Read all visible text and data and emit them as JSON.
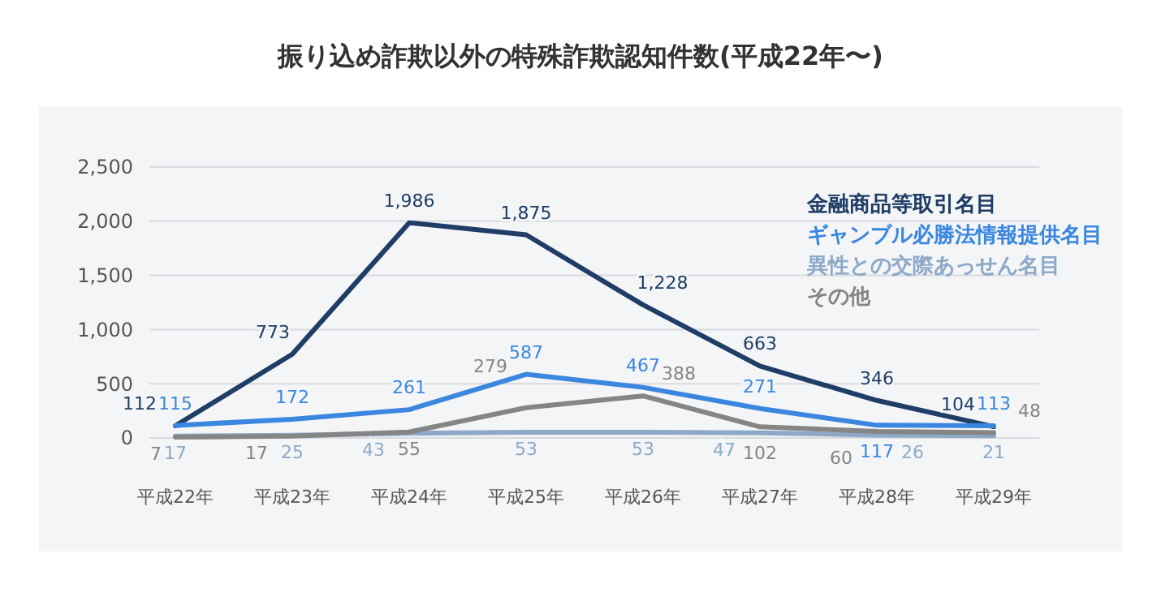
{
  "chart_data": {
    "type": "line",
    "title": "振り込め詐欺以外の特殊詐欺認知件数(平成22年〜)",
    "categories": [
      "平成22年",
      "平成23年",
      "平成24年",
      "平成25年",
      "平成26年",
      "平成27年",
      "平成28年",
      "平成29年"
    ],
    "series": [
      {
        "name": "金融商品等取引名目",
        "color": "#1f3d66",
        "values": [
          112,
          773,
          1986,
          1875,
          1228,
          663,
          346,
          104
        ],
        "value_labels": [
          "112",
          "773",
          "1,986",
          "1,875",
          "1,228",
          "663",
          "346",
          "104"
        ]
      },
      {
        "name": "ギャンブル必勝法情報提供名目",
        "color": "#3b87e0",
        "values": [
          115,
          172,
          261,
          587,
          467,
          271,
          117,
          113
        ],
        "value_labels": [
          "115",
          "172",
          "261",
          "587",
          "467",
          "271",
          "117",
          "113"
        ]
      },
      {
        "name": "異性との交際あっせん名目",
        "color": "#8ea9c8",
        "values": [
          17,
          25,
          43,
          53,
          53,
          47,
          26,
          21
        ],
        "value_labels": [
          "17",
          "25",
          "43",
          "53",
          "53",
          "47",
          "26",
          "21"
        ]
      },
      {
        "name": "その他",
        "color": "#858585",
        "values": [
          7,
          17,
          55,
          279,
          388,
          102,
          60,
          48
        ],
        "value_labels": [
          "7",
          "17",
          "55",
          "279",
          "388",
          "102",
          "60",
          "48"
        ]
      }
    ],
    "ylim": [
      0,
      2500
    ],
    "yticks": [
      0,
      {
        "value": 500,
        "label": "500"
      },
      {
        "value": 1000,
        "label": "1,000"
      },
      {
        "value": 1500,
        "label": "1,500"
      },
      {
        "value": 2000,
        "label": "2,000"
      },
      {
        "value": 2500,
        "label": "2,500"
      }
    ],
    "grid": "y",
    "legend": "top right",
    "data_labels": true,
    "marker": "none",
    "line_style": "solid"
  }
}
